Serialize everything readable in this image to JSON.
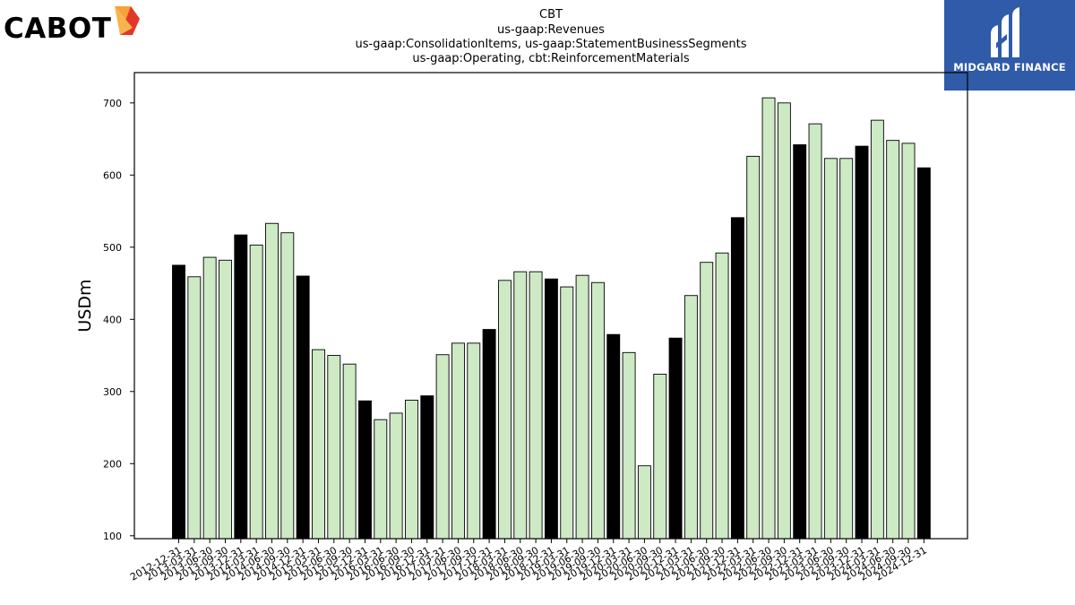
{
  "logos": {
    "left_text": "CABOT",
    "right_text": "MIDGARD FINANCE",
    "right_bg": "#2f5ba8",
    "left_mark_colors": [
      "#f4a23a",
      "#e2372a"
    ]
  },
  "chart_data": {
    "type": "bar",
    "title_lines": [
      "CBT",
      "us-gaap:Revenues",
      "us-gaap:ConsolidationItems, us-gaap:StatementBusinessSegments",
      "us-gaap:Operating, cbt:ReinforcementMaterials"
    ],
    "ylabel": "USDm",
    "xlabel": "",
    "ylim": [
      96,
      742
    ],
    "yticks": [
      100,
      200,
      300,
      400,
      500,
      600,
      700
    ],
    "grid": false,
    "legend": "none",
    "colors": {
      "annual": "#000000",
      "quarterly": "#cdeac5",
      "edge": "#000000"
    },
    "categories": [
      "2012-12-31",
      "2013-03-31",
      "2013-06-30",
      "2013-09-30",
      "2013-12-31",
      "2014-03-31",
      "2014-06-30",
      "2014-09-30",
      "2014-12-31",
      "2015-03-31",
      "2015-06-30",
      "2015-09-30",
      "2015-12-31",
      "2016-03-31",
      "2016-06-30",
      "2016-09-30",
      "2016-12-31",
      "2017-03-31",
      "2017-06-30",
      "2017-09-30",
      "2017-12-31",
      "2018-03-31",
      "2018-06-30",
      "2018-09-30",
      "2018-12-31",
      "2019-03-31",
      "2019-06-30",
      "2019-09-30",
      "2019-12-31",
      "2020-03-31",
      "2020-06-30",
      "2020-09-30",
      "2020-12-31",
      "2021-03-31",
      "2021-06-30",
      "2021-09-30",
      "2021-12-31",
      "2022-03-31",
      "2022-06-30",
      "2022-09-30",
      "2022-12-31",
      "2023-03-31",
      "2023-06-30",
      "2023-09-30",
      "2023-12-31",
      "2024-03-31",
      "2024-06-30",
      "2024-09-30",
      "2024-12-31"
    ],
    "values": [
      475,
      459,
      486,
      482,
      517,
      503,
      533,
      520,
      460,
      358,
      350,
      338,
      287,
      261,
      270,
      288,
      294,
      351,
      367,
      367,
      386,
      454,
      466,
      466,
      456,
      445,
      461,
      451,
      379,
      354,
      197,
      324,
      374,
      433,
      479,
      492,
      541,
      626,
      707,
      700,
      642,
      671,
      623,
      623,
      640,
      676,
      648,
      644,
      610
    ],
    "highlight": [
      true,
      false,
      false,
      false,
      true,
      false,
      false,
      false,
      true,
      false,
      false,
      false,
      true,
      false,
      false,
      false,
      true,
      false,
      false,
      false,
      true,
      false,
      false,
      false,
      true,
      false,
      false,
      false,
      true,
      false,
      false,
      false,
      true,
      false,
      false,
      false,
      true,
      false,
      false,
      false,
      true,
      false,
      false,
      false,
      true,
      false,
      false,
      false,
      true
    ]
  }
}
